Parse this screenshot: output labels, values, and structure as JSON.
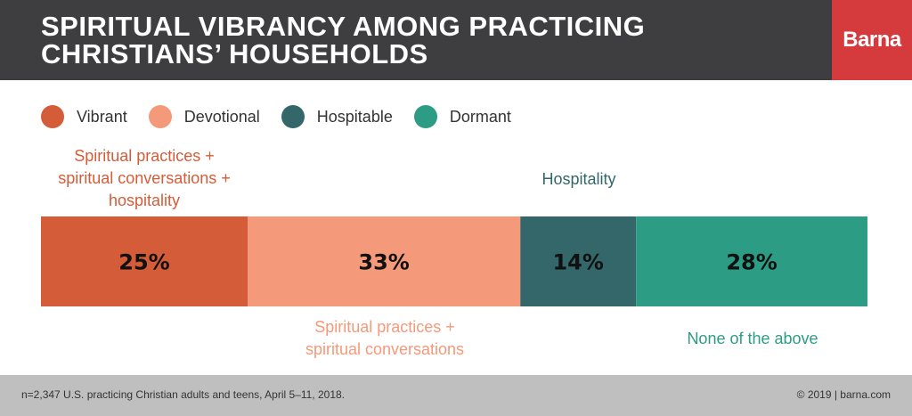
{
  "header": {
    "title_line1": "SPIRITUAL VIBRANCY AMONG PRACTICING",
    "title_line2": "CHRISTIANS’ HOUSEHOLDS",
    "logo_text": "Barna",
    "background": "#3e3e40",
    "logo_color": "#d53a3c"
  },
  "legend": [
    {
      "label": "Vibrant",
      "color": "#d55c38"
    },
    {
      "label": "Devotional",
      "color": "#f4997a"
    },
    {
      "label": "Hospitable",
      "color": "#33676a"
    },
    {
      "label": "Dormant",
      "color": "#2c9c84"
    }
  ],
  "annotations": {
    "vibrant": [
      "Spiritual practices +",
      "spiritual conversations +",
      "hospitality"
    ],
    "hospitable": [
      "Hospitality"
    ],
    "devotional": [
      "Spiritual practices +",
      "spiritual conversations"
    ],
    "dormant": [
      "None of the above"
    ]
  },
  "chart_data": {
    "type": "bar",
    "stacked": true,
    "orientation": "horizontal",
    "title": "SPIRITUAL VIBRANCY AMONG PRACTICING CHRISTIANS’ HOUSEHOLDS",
    "unit": "%",
    "series": [
      {
        "name": "Vibrant",
        "value": 25,
        "label": "25%",
        "color": "#d55c38"
      },
      {
        "name": "Devotional",
        "value": 33,
        "label": "33%",
        "color": "#f4997a"
      },
      {
        "name": "Hospitable",
        "value": 14,
        "label": "14%",
        "color": "#33676a"
      },
      {
        "name": "Dormant",
        "value": 28,
        "label": "28%",
        "color": "#2c9c84"
      }
    ],
    "legend_position": "top-left",
    "grid": false
  },
  "footer": {
    "source": "n=2,347 U.S. practicing Christian adults and teens, April 5–11, 2018.",
    "copyright": "© 2019 | barna.com"
  }
}
